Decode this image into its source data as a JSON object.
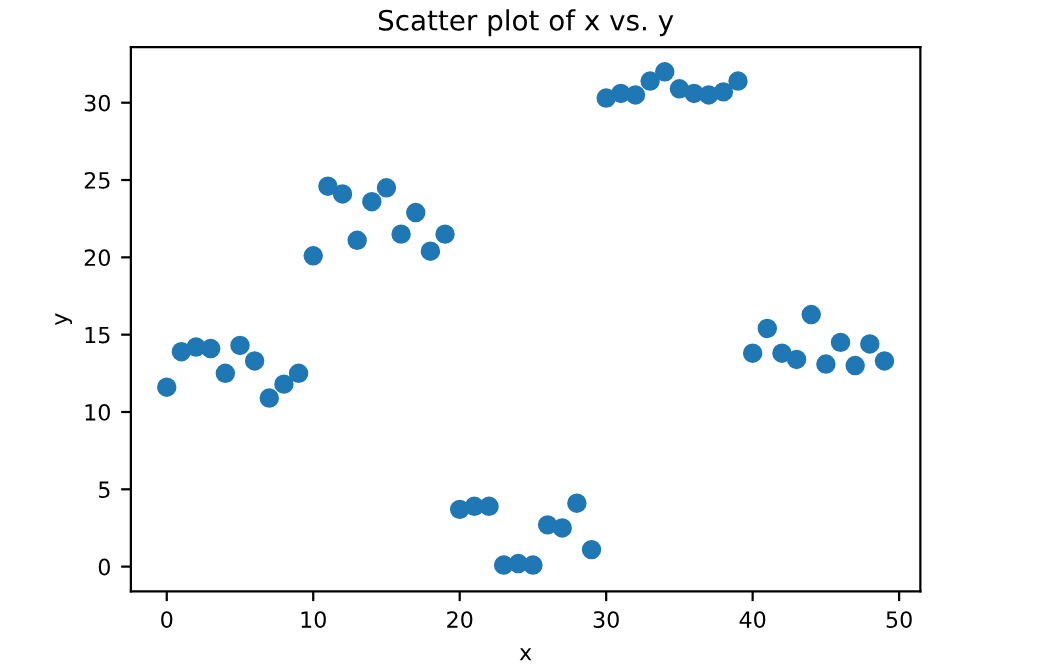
{
  "chart_data": {
    "type": "scatter",
    "title": "Scatter plot of x vs. y",
    "xlabel": "x",
    "ylabel": "y",
    "x": [
      0,
      1,
      2,
      3,
      4,
      5,
      6,
      7,
      8,
      9,
      10,
      11,
      12,
      13,
      14,
      15,
      16,
      17,
      18,
      19,
      20,
      21,
      22,
      23,
      24,
      25,
      26,
      27,
      28,
      29,
      30,
      31,
      32,
      33,
      34,
      35,
      36,
      37,
      38,
      39,
      40,
      41,
      42,
      43,
      44,
      45,
      46,
      47,
      48,
      49
    ],
    "series": [
      {
        "color": "#1f77b4",
        "values": [
          11.6,
          13.9,
          14.2,
          14.1,
          12.5,
          14.3,
          13.3,
          10.9,
          11.8,
          12.5,
          20.1,
          24.6,
          24.1,
          21.1,
          23.6,
          24.5,
          21.5,
          22.9,
          20.4,
          21.5,
          3.7,
          3.9,
          3.9,
          0.1,
          0.2,
          0.1,
          2.7,
          2.5,
          4.1,
          1.1,
          30.3,
          30.6,
          30.5,
          31.4,
          32.0,
          30.9,
          30.6,
          30.5,
          30.7,
          31.4,
          13.8,
          15.4,
          13.8,
          13.4,
          16.3,
          13.1,
          14.5,
          13.0,
          14.4,
          13.3
        ]
      }
    ],
    "xlim": [
      -2.45,
      51.45
    ],
    "ylim": [
      -1.6,
      33.6
    ],
    "xticks": [
      0,
      10,
      20,
      30,
      40,
      50
    ],
    "yticks": [
      0,
      5,
      10,
      15,
      20,
      25,
      30
    ],
    "marker": "circle",
    "grid": false,
    "legend": false
  }
}
